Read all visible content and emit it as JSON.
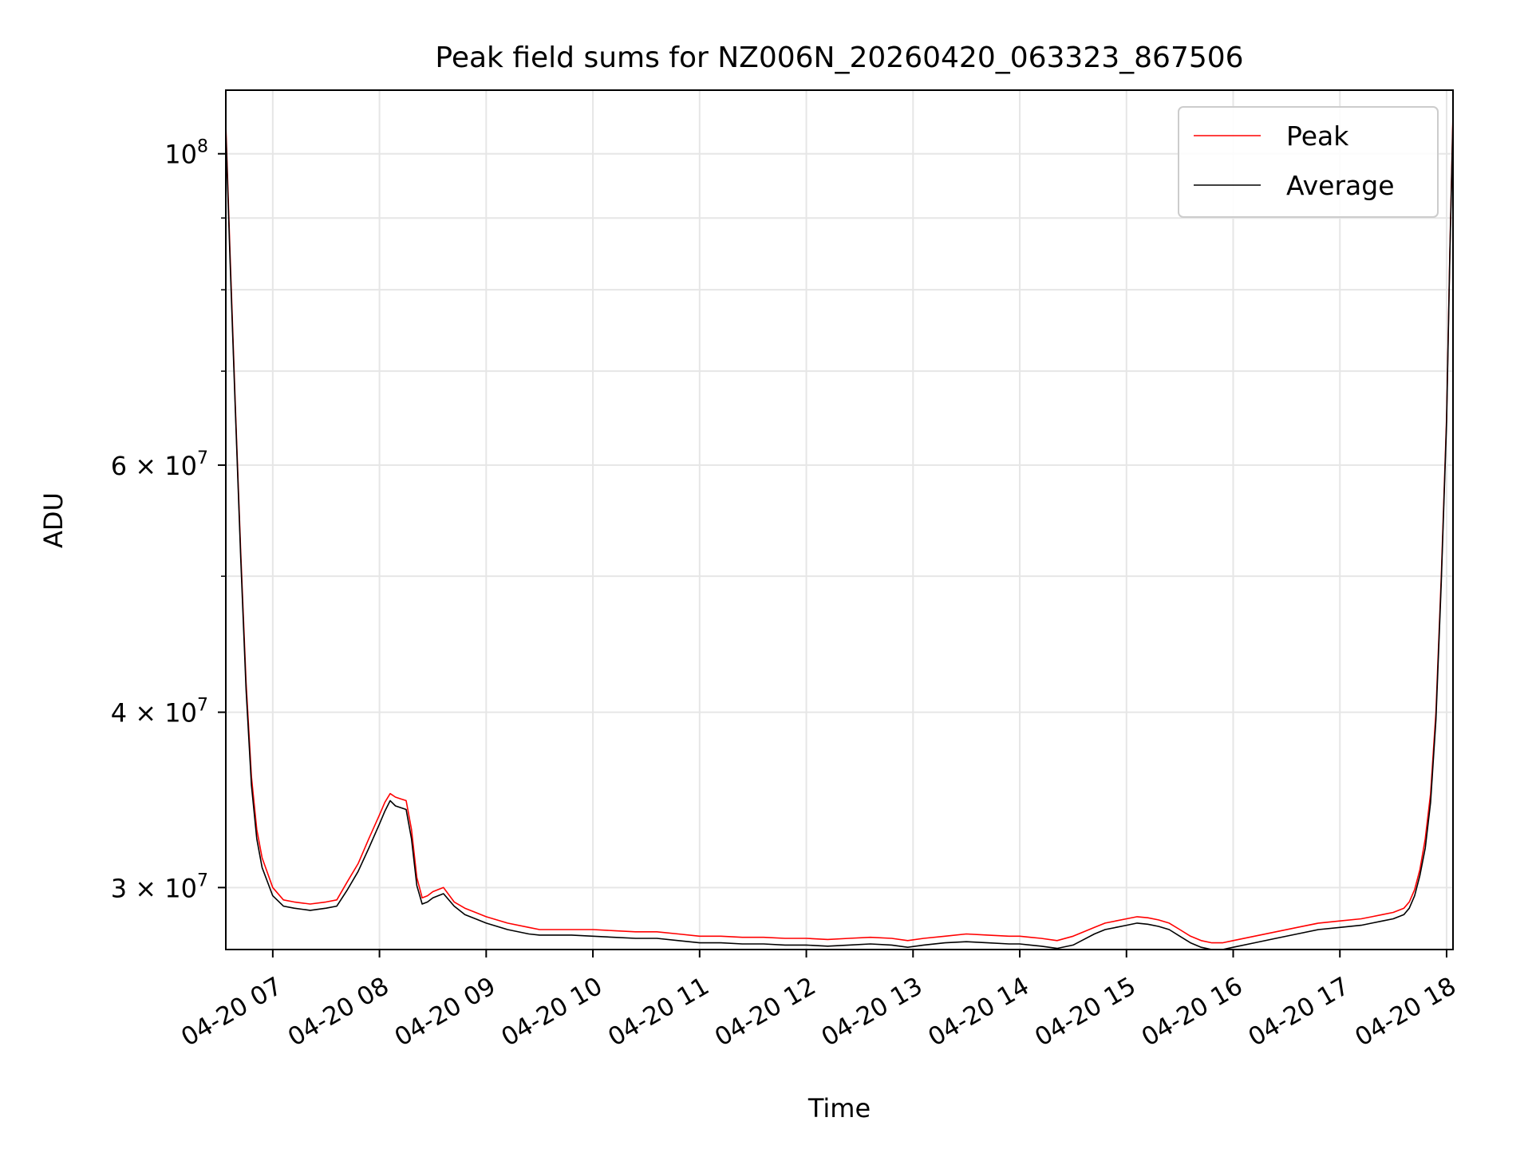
{
  "chart_data": {
    "type": "line",
    "title": "Peak field sums for NZ006N_20260420_063323_867506",
    "xlabel": "Time",
    "ylabel": "ADU",
    "y_scale": "log",
    "ylim": [
      27100000,
      111000000
    ],
    "xlim_hours": [
      6.56,
      18.06
    ],
    "grid": true,
    "legend_position": "upper right",
    "x_ticks": [
      {
        "hour": 7,
        "label": "04-20 07"
      },
      {
        "hour": 8,
        "label": "04-20 08"
      },
      {
        "hour": 9,
        "label": "04-20 09"
      },
      {
        "hour": 10,
        "label": "04-20 10"
      },
      {
        "hour": 11,
        "label": "04-20 11"
      },
      {
        "hour": 12,
        "label": "04-20 12"
      },
      {
        "hour": 13,
        "label": "04-20 13"
      },
      {
        "hour": 14,
        "label": "04-20 14"
      },
      {
        "hour": 15,
        "label": "04-20 15"
      },
      {
        "hour": 16,
        "label": "04-20 16"
      },
      {
        "hour": 17,
        "label": "04-20 17"
      },
      {
        "hour": 18,
        "label": "04-20 18"
      }
    ],
    "y_major_ticks": [
      {
        "value": 100000000,
        "base": "10",
        "exp": "8"
      },
      {
        "value": 60000000,
        "base": "6 × 10",
        "exp": "7"
      },
      {
        "value": 40000000,
        "base": "4 × 10",
        "exp": "7"
      },
      {
        "value": 30000000,
        "base": "3 × 10",
        "exp": "7"
      }
    ],
    "y_minor_gridlines": [
      90000000,
      80000000,
      70000000,
      50000000
    ],
    "series": [
      {
        "name": "Peak",
        "color": "#ff0000",
        "x_hours": [
          6.56,
          6.6,
          6.65,
          6.7,
          6.75,
          6.8,
          6.85,
          6.9,
          7.0,
          7.1,
          7.2,
          7.35,
          7.5,
          7.6,
          7.7,
          7.8,
          7.9,
          8.0,
          8.05,
          8.1,
          8.15,
          8.2,
          8.25,
          8.3,
          8.35,
          8.4,
          8.45,
          8.5,
          8.55,
          8.6,
          8.7,
          8.8,
          8.9,
          9.0,
          9.2,
          9.4,
          9.5,
          9.6,
          9.8,
          10.0,
          10.2,
          10.4,
          10.6,
          10.8,
          11.0,
          11.2,
          11.4,
          11.6,
          11.8,
          12.0,
          12.2,
          12.4,
          12.6,
          12.8,
          12.95,
          13.1,
          13.3,
          13.5,
          13.7,
          13.9,
          14.0,
          14.1,
          14.2,
          14.35,
          14.5,
          14.6,
          14.7,
          14.8,
          14.9,
          15.0,
          15.1,
          15.2,
          15.3,
          15.4,
          15.5,
          15.6,
          15.7,
          15.8,
          15.9,
          16.0,
          16.2,
          16.4,
          16.6,
          16.8,
          17.0,
          17.2,
          17.3,
          17.4,
          17.5,
          17.6,
          17.65,
          17.7,
          17.75,
          17.8,
          17.85,
          17.9,
          17.95,
          18.0,
          18.03,
          18.06
        ],
        "values": [
          105000000,
          85000000,
          66000000,
          52000000,
          42000000,
          36000000,
          33000000,
          31500000,
          30000000,
          29400000,
          29300000,
          29200000,
          29300000,
          29400000,
          30300000,
          31200000,
          32500000,
          33800000,
          34500000,
          35000000,
          34800000,
          34700000,
          34600000,
          33000000,
          30500000,
          29500000,
          29600000,
          29800000,
          29900000,
          30000000,
          29300000,
          29000000,
          28800000,
          28600000,
          28300000,
          28100000,
          28000000,
          28000000,
          28000000,
          28000000,
          27950000,
          27900000,
          27900000,
          27800000,
          27700000,
          27700000,
          27650000,
          27650000,
          27600000,
          27600000,
          27550000,
          27600000,
          27650000,
          27600000,
          27500000,
          27600000,
          27700000,
          27800000,
          27750000,
          27700000,
          27700000,
          27650000,
          27600000,
          27500000,
          27700000,
          27900000,
          28100000,
          28300000,
          28400000,
          28500000,
          28600000,
          28550000,
          28450000,
          28300000,
          28000000,
          27700000,
          27500000,
          27400000,
          27400000,
          27500000,
          27700000,
          27900000,
          28100000,
          28300000,
          28400000,
          28500000,
          28600000,
          28700000,
          28800000,
          29000000,
          29300000,
          29900000,
          30900000,
          32500000,
          35000000,
          40000000,
          50000000,
          65000000,
          85000000,
          107000000
        ]
      },
      {
        "name": "Average",
        "color": "#000000",
        "x_hours": [
          6.56,
          6.6,
          6.65,
          6.7,
          6.75,
          6.8,
          6.85,
          6.9,
          7.0,
          7.1,
          7.2,
          7.35,
          7.5,
          7.6,
          7.7,
          7.8,
          7.9,
          8.0,
          8.05,
          8.1,
          8.15,
          8.2,
          8.25,
          8.3,
          8.35,
          8.4,
          8.45,
          8.5,
          8.55,
          8.6,
          8.7,
          8.8,
          8.9,
          9.0,
          9.2,
          9.4,
          9.5,
          9.6,
          9.8,
          10.0,
          10.2,
          10.4,
          10.6,
          10.8,
          11.0,
          11.2,
          11.4,
          11.6,
          11.8,
          12.0,
          12.2,
          12.4,
          12.6,
          12.8,
          12.95,
          13.1,
          13.3,
          13.5,
          13.7,
          13.9,
          14.0,
          14.1,
          14.2,
          14.35,
          14.5,
          14.6,
          14.7,
          14.8,
          14.9,
          15.0,
          15.1,
          15.2,
          15.3,
          15.4,
          15.5,
          15.6,
          15.7,
          15.8,
          15.9,
          16.0,
          16.2,
          16.4,
          16.6,
          16.8,
          17.0,
          17.2,
          17.3,
          17.4,
          17.5,
          17.6,
          17.65,
          17.7,
          17.75,
          17.8,
          17.85,
          17.9,
          17.95,
          18.0,
          18.03,
          18.06
        ],
        "values": [
          104000000,
          84000000,
          65500000,
          51500000,
          41500000,
          35500000,
          32500000,
          31000000,
          29600000,
          29100000,
          29000000,
          28900000,
          29000000,
          29100000,
          29900000,
          30800000,
          32000000,
          33300000,
          34000000,
          34600000,
          34300000,
          34200000,
          34100000,
          32500000,
          30100000,
          29200000,
          29300000,
          29500000,
          29600000,
          29700000,
          29100000,
          28700000,
          28500000,
          28300000,
          28000000,
          27800000,
          27750000,
          27750000,
          27750000,
          27700000,
          27650000,
          27600000,
          27600000,
          27500000,
          27400000,
          27400000,
          27350000,
          27350000,
          27300000,
          27300000,
          27250000,
          27300000,
          27350000,
          27300000,
          27200000,
          27300000,
          27400000,
          27450000,
          27400000,
          27350000,
          27350000,
          27300000,
          27250000,
          27150000,
          27300000,
          27550000,
          27800000,
          28000000,
          28100000,
          28200000,
          28300000,
          28250000,
          28150000,
          28000000,
          27700000,
          27400000,
          27200000,
          27100000,
          27100000,
          27200000,
          27400000,
          27600000,
          27800000,
          28000000,
          28100000,
          28200000,
          28300000,
          28400000,
          28500000,
          28700000,
          29000000,
          29600000,
          30600000,
          32000000,
          34500000,
          39500000,
          49500000,
          64500000,
          84500000,
          106000000
        ]
      }
    ]
  }
}
